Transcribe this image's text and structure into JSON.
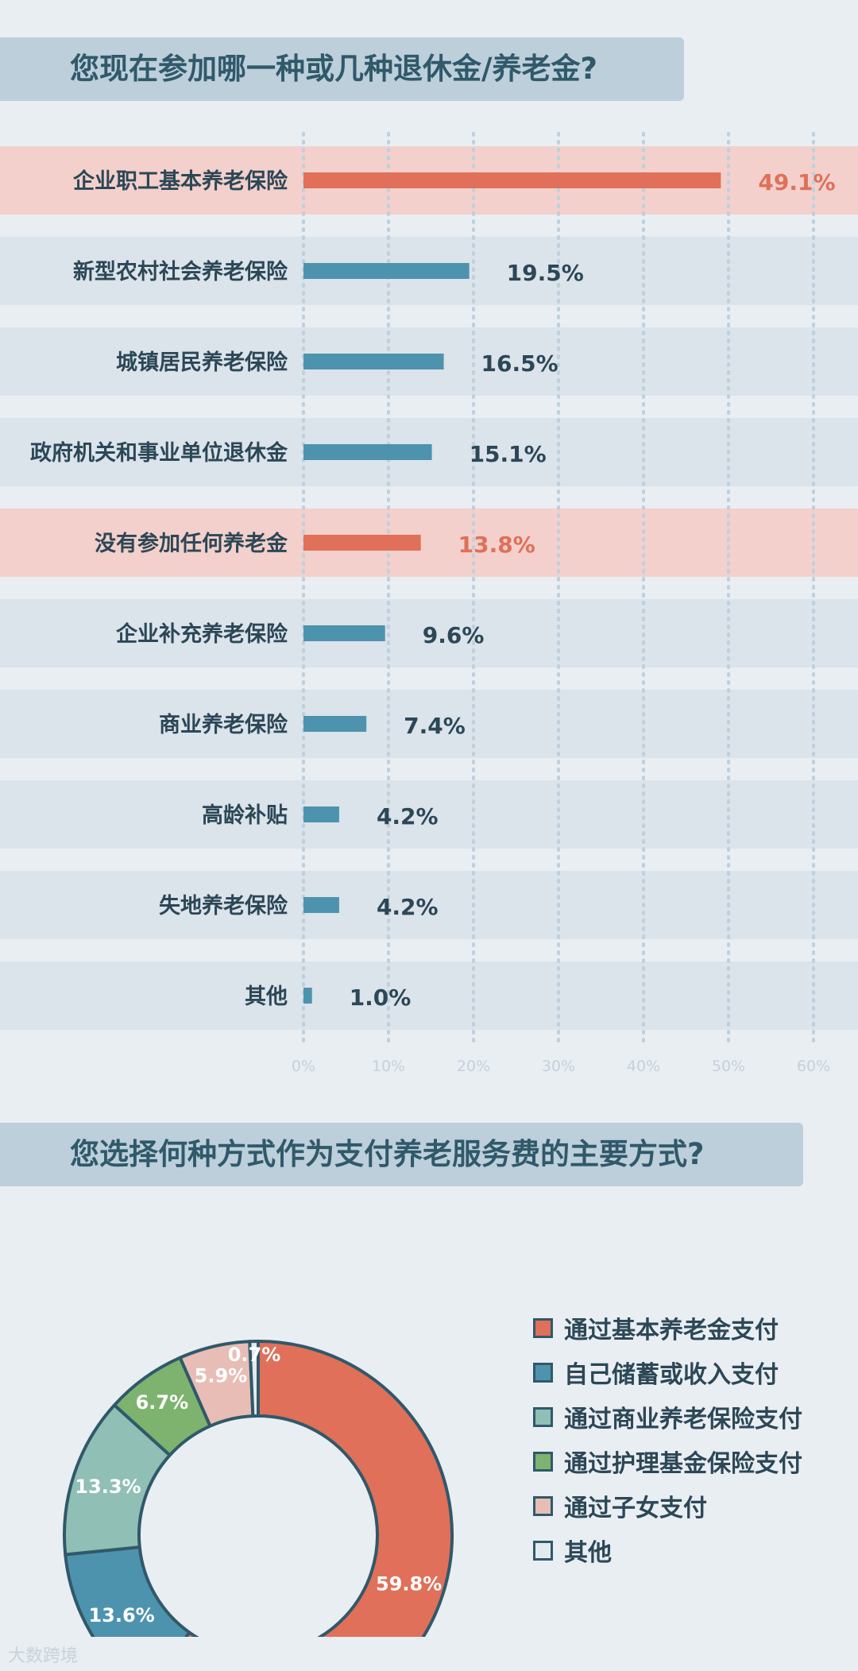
{
  "header1": {
    "title": "您现在参加哪一种或几种退休金/养老金?"
  },
  "header2": {
    "title": "您选择何种方式作为支付养老服务费的主要方式?"
  },
  "watermark": "大数跨境",
  "colors": {
    "accent": "#e07059",
    "bar_default": "#4d93ae",
    "highlight_row": "#f3d0cb",
    "row": "#dbe3eb",
    "label_text": "#2c4756",
    "highlight_text": "#e07059",
    "tick_text": "#c5d1db",
    "gridline": "#bfd0dc"
  },
  "chart_data": [
    {
      "type": "bar",
      "orientation": "horizontal",
      "categories": [
        "企业职工基本养老保险",
        "新型农村社会养老保险",
        "城镇居民养老保险",
        "政府机关和事业单位退休金",
        "没有参加任何养老金",
        "企业补充养老保险",
        "商业养老保险",
        "高龄补贴",
        "失地养老保险",
        "其他"
      ],
      "values": [
        49.1,
        19.5,
        16.5,
        15.1,
        13.8,
        9.6,
        7.4,
        4.2,
        4.2,
        1.0
      ],
      "value_labels": [
        "49.1%",
        "19.5%",
        "16.5%",
        "15.1%",
        "13.8%",
        "9.6%",
        "7.4%",
        "4.2%",
        "4.2%",
        "1.0%"
      ],
      "highlighted": [
        true,
        false,
        false,
        false,
        true,
        false,
        false,
        false,
        false,
        false
      ],
      "xlim": [
        0,
        60
      ],
      "xticks": [
        0,
        10,
        20,
        30,
        40,
        50,
        60
      ],
      "xtick_labels": [
        "0%",
        "10%",
        "20%",
        "30%",
        "40%",
        "50%",
        "60%"
      ],
      "grid": true
    },
    {
      "type": "pie",
      "variant": "donut",
      "slices": [
        {
          "label": "通过基本养老金支付",
          "value": 59.8,
          "value_label": "59.8%",
          "color": "#e07059"
        },
        {
          "label": "自己储蓄或收入支付",
          "value": 13.6,
          "value_label": "13.6%",
          "color": "#4d93ae"
        },
        {
          "label": "通过商业养老保险支付",
          "value": 13.3,
          "value_label": "13.3%",
          "color": "#8fbfb5"
        },
        {
          "label": "通过护理基金保险支付",
          "value": 6.7,
          "value_label": "6.7%",
          "color": "#7eb36f"
        },
        {
          "label": "通过子女支付",
          "value": 5.9,
          "value_label": "5.9%",
          "color": "#e8bdb5"
        },
        {
          "label": "其他",
          "value": 0.7,
          "value_label": "0.7%",
          "color": "#e2eaf0"
        }
      ],
      "legend_position": "right"
    }
  ]
}
